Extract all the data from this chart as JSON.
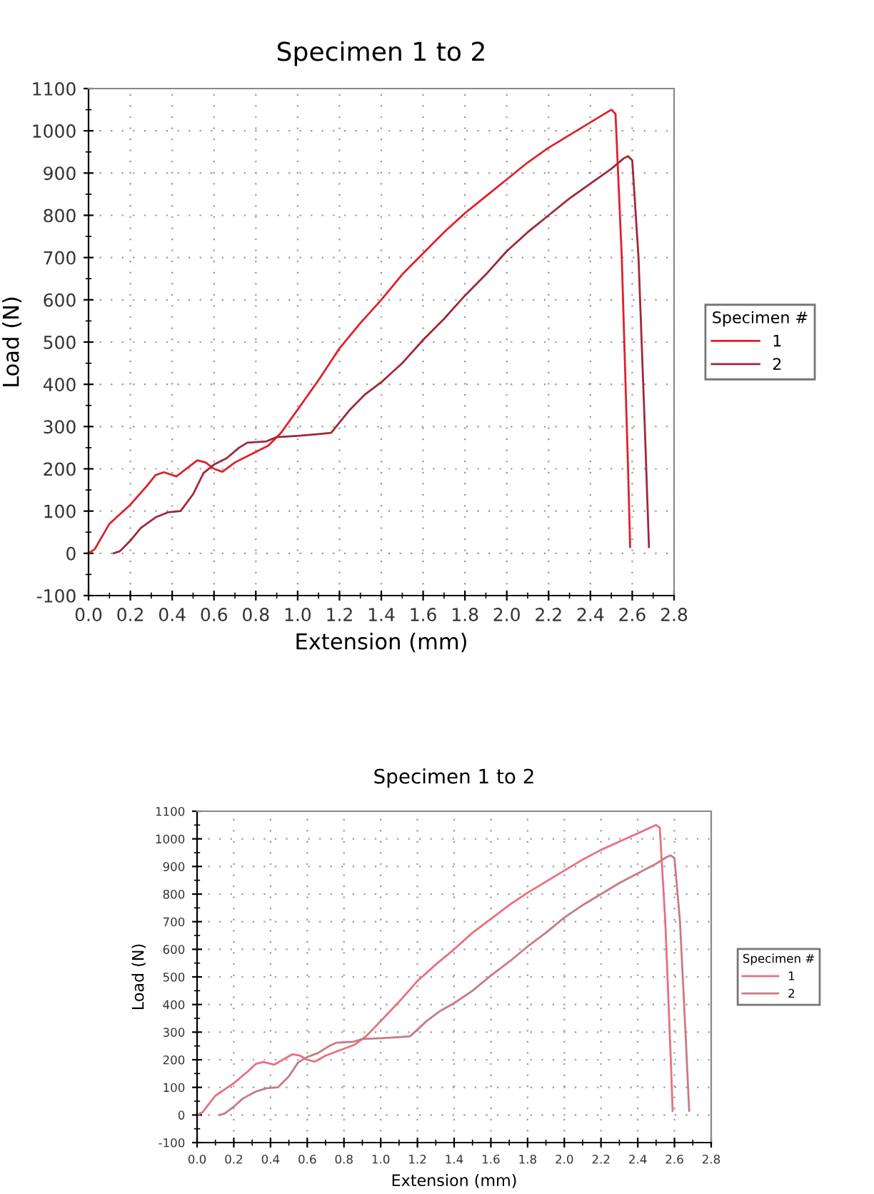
{
  "chart_data": [
    {
      "type": "line",
      "title": "Specimen 1 to 2",
      "xlabel": "Extension (mm)",
      "ylabel": "Load (N)",
      "legend_title": "Specimen #",
      "legend": "right",
      "grid": true,
      "marker": "none",
      "line_style": "solid",
      "xlim": [
        0,
        2.8
      ],
      "ylim": [
        -100,
        1100
      ],
      "xticks": [
        {
          "value": 0,
          "label": "0.0"
        },
        0.2,
        0.4,
        0.6,
        0.8,
        {
          "value": 1,
          "label": "1.0"
        },
        1.2,
        1.4,
        1.6,
        1.8,
        {
          "value": 2,
          "label": "2.0"
        },
        2.2,
        2.4,
        2.6,
        2.8
      ],
      "yticks": [
        -100,
        0,
        100,
        200,
        300,
        400,
        500,
        600,
        700,
        800,
        900,
        1000,
        1100
      ],
      "series": [
        {
          "name": "1",
          "color": "#e0202a",
          "x": [
            0,
            0.03,
            0.1,
            0.2,
            0.28,
            0.32,
            0.36,
            0.42,
            0.48,
            0.52,
            0.56,
            0.6,
            0.64,
            0.7,
            0.78,
            0.86,
            0.92,
            1.0,
            1.1,
            1.2,
            1.3,
            1.4,
            1.5,
            1.6,
            1.7,
            1.8,
            1.9,
            2.0,
            2.1,
            2.2,
            2.3,
            2.4,
            2.5,
            2.52,
            2.55,
            2.58,
            2.59
          ],
          "values": [
            0,
            10,
            70,
            115,
            160,
            185,
            192,
            182,
            205,
            220,
            215,
            200,
            193,
            215,
            235,
            255,
            285,
            340,
            410,
            485,
            545,
            600,
            660,
            710,
            760,
            805,
            845,
            885,
            925,
            960,
            990,
            1020,
            1050,
            1040,
            700,
            200,
            15
          ]
        },
        {
          "name": "2",
          "color": "#a02838",
          "x": [
            0.12,
            0.15,
            0.2,
            0.25,
            0.32,
            0.38,
            0.44,
            0.5,
            0.55,
            0.6,
            0.66,
            0.72,
            0.76,
            0.85,
            0.9,
            1.0,
            1.1,
            1.16,
            1.25,
            1.32,
            1.4,
            1.5,
            1.6,
            1.7,
            1.8,
            1.9,
            2.0,
            2.1,
            2.2,
            2.3,
            2.4,
            2.5,
            2.56,
            2.58,
            2.6,
            2.63,
            2.66,
            2.68
          ],
          "values": [
            0,
            5,
            30,
            60,
            85,
            97,
            100,
            140,
            190,
            210,
            225,
            250,
            262,
            265,
            275,
            278,
            282,
            285,
            340,
            375,
            405,
            450,
            505,
            555,
            610,
            660,
            715,
            760,
            800,
            840,
            875,
            910,
            935,
            940,
            930,
            700,
            300,
            15
          ]
        }
      ]
    },
    {
      "type": "line",
      "title": "Specimen 1 to 2",
      "xlabel": "Extension (mm)",
      "ylabel": "Load (N)",
      "legend_title": "Specimen #",
      "legend": "right",
      "grid": true,
      "marker": "none",
      "line_style": "solid",
      "xlim": [
        0,
        2.8
      ],
      "ylim": [
        -100,
        1100
      ],
      "xticks": [
        {
          "value": 0,
          "label": "0.0"
        },
        0.2,
        0.4,
        0.6,
        0.8,
        {
          "value": 1,
          "label": "1.0"
        },
        1.2,
        1.4,
        1.6,
        1.8,
        {
          "value": 2,
          "label": "2.0"
        },
        2.2,
        2.4,
        2.6,
        2.8
      ],
      "yticks": [
        -100,
        0,
        100,
        200,
        300,
        400,
        500,
        600,
        700,
        800,
        900,
        1000,
        1100
      ],
      "series": [
        {
          "name": "1",
          "color": "#e8707e",
          "x": [
            0,
            0.03,
            0.1,
            0.2,
            0.28,
            0.32,
            0.36,
            0.42,
            0.48,
            0.52,
            0.56,
            0.6,
            0.64,
            0.7,
            0.78,
            0.86,
            0.92,
            1.0,
            1.1,
            1.2,
            1.3,
            1.4,
            1.5,
            1.6,
            1.7,
            1.8,
            1.9,
            2.0,
            2.1,
            2.2,
            2.3,
            2.4,
            2.5,
            2.52,
            2.55,
            2.58,
            2.59
          ],
          "values": [
            0,
            10,
            70,
            115,
            160,
            185,
            192,
            182,
            205,
            220,
            215,
            200,
            193,
            215,
            235,
            255,
            285,
            340,
            410,
            485,
            545,
            600,
            660,
            710,
            760,
            805,
            845,
            885,
            925,
            960,
            990,
            1020,
            1050,
            1040,
            700,
            200,
            15
          ]
        },
        {
          "name": "2",
          "color": "#c87a86",
          "x": [
            0.12,
            0.15,
            0.2,
            0.25,
            0.32,
            0.38,
            0.44,
            0.5,
            0.55,
            0.6,
            0.66,
            0.72,
            0.76,
            0.85,
            0.9,
            1.0,
            1.1,
            1.16,
            1.25,
            1.32,
            1.4,
            1.5,
            1.6,
            1.7,
            1.8,
            1.9,
            2.0,
            2.1,
            2.2,
            2.3,
            2.4,
            2.5,
            2.56,
            2.58,
            2.6,
            2.63,
            2.66,
            2.68
          ],
          "values": [
            0,
            5,
            30,
            60,
            85,
            97,
            100,
            140,
            190,
            210,
            225,
            250,
            262,
            265,
            275,
            278,
            282,
            285,
            340,
            375,
            405,
            450,
            505,
            555,
            610,
            660,
            715,
            760,
            800,
            840,
            875,
            910,
            935,
            940,
            930,
            700,
            300,
            15
          ]
        }
      ]
    }
  ]
}
